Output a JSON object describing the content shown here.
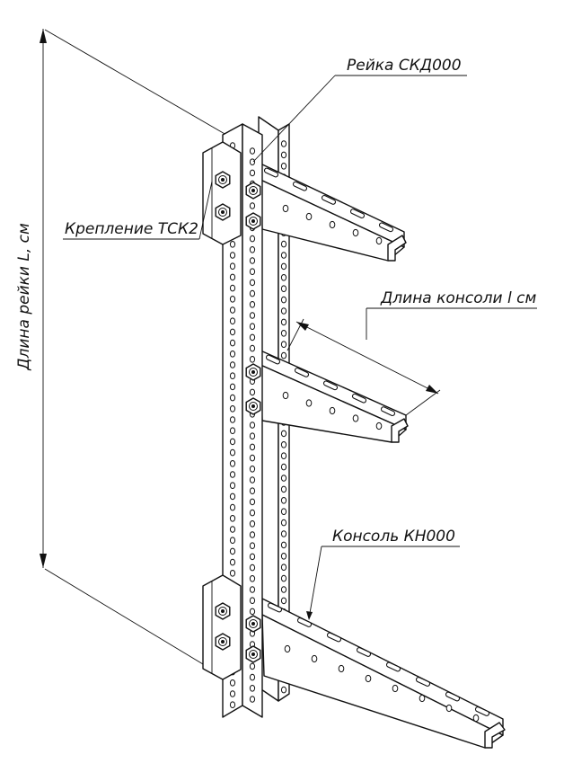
{
  "labels": {
    "rail": "Рейка СКД000",
    "mount": "Крепление ТСК2",
    "rail_length": "Длина рейки L, см",
    "console_length": "Длина консоли l см",
    "console": "Консоль КН000"
  },
  "colors": {
    "line": "#111111",
    "background": "#ffffff"
  }
}
